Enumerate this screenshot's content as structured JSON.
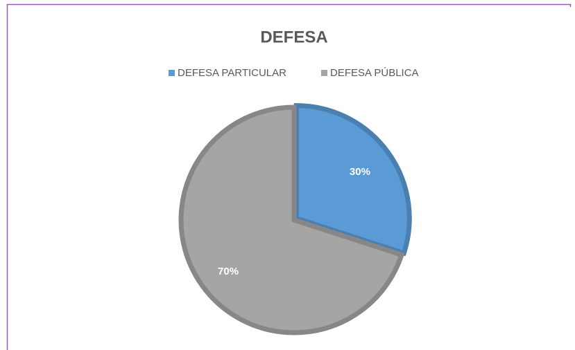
{
  "chart_data": {
    "type": "pie",
    "title": "DEFESA",
    "categories": [
      "DEFESA PARTICULAR",
      "DEFESA PÚBLICA"
    ],
    "values": [
      30,
      70
    ],
    "value_labels": [
      "30%",
      "70%"
    ],
    "colors": [
      "#5b9bd5",
      "#a5a5a5"
    ],
    "legend": "top"
  }
}
